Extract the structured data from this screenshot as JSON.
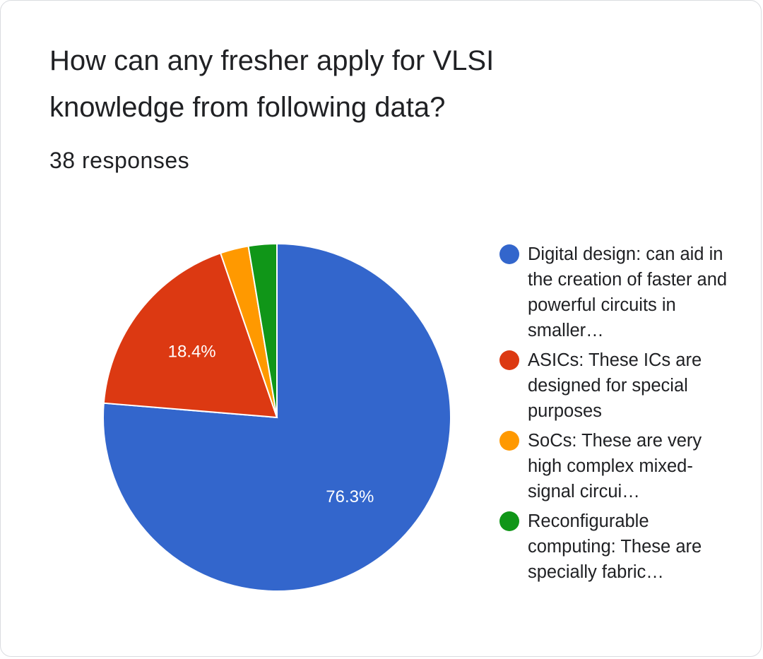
{
  "card": {
    "title": "How can any fresher apply for VLSI knowledge from following data?",
    "responses": "38 responses"
  },
  "chart_data": {
    "type": "pie",
    "total_responses": 38,
    "slices": [
      {
        "name": "Digital design: can aid in the creation of faster and powerful circuits in smaller…",
        "value": 29,
        "percent": 76.3,
        "label": "76.3%",
        "color": "#3366cc"
      },
      {
        "name": "ASICs: These ICs are designed for special purposes",
        "value": 7,
        "percent": 18.4,
        "label": "18.4%",
        "color": "#dc3912"
      },
      {
        "name": "SoCs: These are very high complex mixed-signal circui…",
        "value": 1,
        "percent": 2.6,
        "label": "",
        "color": "#ff9900"
      },
      {
        "name": "Reconfigurable computing: These are specially fabric…",
        "value": 1,
        "percent": 2.6,
        "label": "",
        "color": "#109618"
      }
    ],
    "legend_position": "right"
  }
}
